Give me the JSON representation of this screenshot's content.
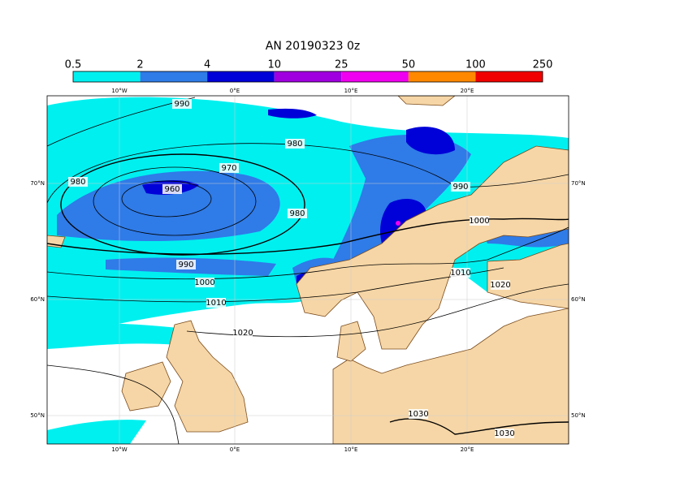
{
  "title": "AN 20190323 0z",
  "colorbar": {
    "ticks": [
      0.5,
      2,
      4,
      10,
      25,
      50,
      100,
      250
    ],
    "colors": [
      "#00f0f0",
      "#2f7be8",
      "#0000d8",
      "#a000e0",
      "#f000f0",
      "#ff8800",
      "#f00000"
    ]
  },
  "longitude_labels": [
    "10°W",
    "0°E",
    "10°E",
    "20°E"
  ],
  "latitude_labels": [
    "70°N",
    "60°N",
    "50°N"
  ],
  "contour_labels": [
    990,
    980,
    970,
    960,
    980,
    980,
    990,
    1000,
    990,
    1000,
    1010,
    1010,
    1020,
    1020,
    1030,
    1030
  ]
}
